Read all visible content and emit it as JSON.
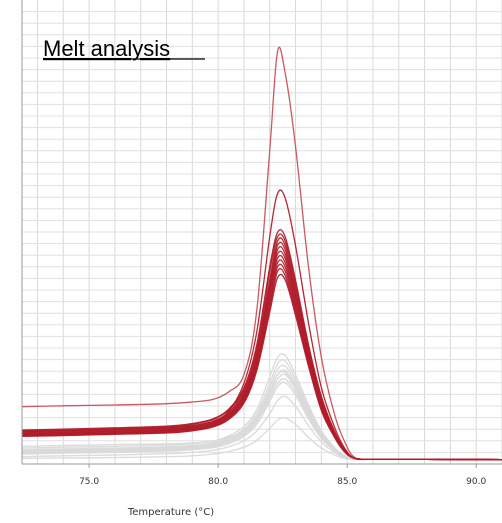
{
  "chart_data": {
    "type": "line",
    "title": "Melt analysis",
    "xlabel": "Temperature (°C)",
    "ylabel": "",
    "xlim": [
      72.4,
      91.0
    ],
    "ylim": [
      0,
      1.0
    ],
    "xticks": [
      "75.0",
      "80.0",
      "85.0",
      "90.0"
    ],
    "grid": true,
    "colors": {
      "sample": "#b01c2a",
      "sample_light": "#c8505a",
      "control": "#d8d8d8"
    },
    "x": [
      72.4,
      74,
      76,
      78,
      79,
      79.8,
      80.4,
      81.0,
      81.5,
      82.0,
      82.3,
      82.6,
      83.0,
      83.5,
      84.0,
      84.5,
      84.9,
      85.3,
      86,
      88,
      91.0
    ],
    "series": [
      {
        "group": "sample",
        "values": [
          0.126,
          0.128,
          0.13,
          0.133,
          0.137,
          0.143,
          0.16,
          0.2,
          0.35,
          0.72,
          0.95,
          0.9,
          0.73,
          0.45,
          0.24,
          0.11,
          0.045,
          0.008,
          0.004,
          0.004,
          0.003
        ]
      },
      {
        "group": "sample",
        "values": [
          0.068,
          0.07,
          0.073,
          0.077,
          0.082,
          0.092,
          0.115,
          0.18,
          0.3,
          0.52,
          0.62,
          0.61,
          0.5,
          0.32,
          0.17,
          0.08,
          0.03,
          0.006,
          0.004,
          0.004,
          0.003
        ]
      },
      {
        "group": "sample",
        "values": [
          0.072,
          0.074,
          0.077,
          0.081,
          0.087,
          0.098,
          0.12,
          0.17,
          0.27,
          0.45,
          0.53,
          0.52,
          0.42,
          0.27,
          0.15,
          0.07,
          0.027,
          0.006,
          0.004,
          0.004,
          0.003
        ]
      },
      {
        "group": "sample",
        "values": [
          0.07,
          0.072,
          0.075,
          0.079,
          0.085,
          0.096,
          0.118,
          0.165,
          0.26,
          0.44,
          0.52,
          0.51,
          0.41,
          0.265,
          0.145,
          0.068,
          0.026,
          0.006,
          0.004,
          0.004,
          0.003
        ]
      },
      {
        "group": "sample",
        "values": [
          0.068,
          0.07,
          0.073,
          0.077,
          0.082,
          0.092,
          0.113,
          0.16,
          0.25,
          0.42,
          0.51,
          0.5,
          0.4,
          0.26,
          0.14,
          0.066,
          0.025,
          0.006,
          0.004,
          0.004,
          0.003
        ]
      },
      {
        "group": "sample",
        "values": [
          0.066,
          0.068,
          0.071,
          0.075,
          0.08,
          0.09,
          0.11,
          0.155,
          0.245,
          0.41,
          0.5,
          0.49,
          0.39,
          0.255,
          0.138,
          0.065,
          0.025,
          0.006,
          0.004,
          0.004,
          0.003
        ]
      },
      {
        "group": "sample",
        "values": [
          0.064,
          0.066,
          0.069,
          0.073,
          0.078,
          0.088,
          0.108,
          0.152,
          0.24,
          0.4,
          0.49,
          0.48,
          0.385,
          0.25,
          0.135,
          0.064,
          0.024,
          0.006,
          0.004,
          0.004,
          0.003
        ]
      },
      {
        "group": "sample",
        "values": [
          0.063,
          0.065,
          0.068,
          0.072,
          0.077,
          0.087,
          0.106,
          0.15,
          0.235,
          0.395,
          0.48,
          0.47,
          0.378,
          0.245,
          0.132,
          0.062,
          0.024,
          0.006,
          0.004,
          0.004,
          0.003
        ]
      },
      {
        "group": "sample",
        "values": [
          0.061,
          0.063,
          0.066,
          0.07,
          0.075,
          0.085,
          0.104,
          0.146,
          0.23,
          0.385,
          0.47,
          0.46,
          0.37,
          0.24,
          0.129,
          0.061,
          0.023,
          0.006,
          0.004,
          0.004,
          0.003
        ]
      },
      {
        "group": "sample",
        "values": [
          0.06,
          0.062,
          0.065,
          0.069,
          0.074,
          0.083,
          0.102,
          0.143,
          0.225,
          0.375,
          0.46,
          0.45,
          0.362,
          0.235,
          0.126,
          0.06,
          0.023,
          0.006,
          0.004,
          0.004,
          0.003
        ]
      },
      {
        "group": "sample",
        "values": [
          0.059,
          0.061,
          0.064,
          0.068,
          0.073,
          0.082,
          0.1,
          0.14,
          0.22,
          0.365,
          0.45,
          0.44,
          0.354,
          0.23,
          0.123,
          0.058,
          0.022,
          0.006,
          0.004,
          0.004,
          0.003
        ]
      },
      {
        "group": "sample",
        "values": [
          0.058,
          0.06,
          0.063,
          0.066,
          0.071,
          0.08,
          0.098,
          0.137,
          0.215,
          0.355,
          0.44,
          0.43,
          0.346,
          0.225,
          0.12,
          0.057,
          0.022,
          0.006,
          0.004,
          0.004,
          0.003
        ]
      },
      {
        "group": "sample",
        "values": [
          0.057,
          0.059,
          0.062,
          0.065,
          0.07,
          0.079,
          0.096,
          0.134,
          0.21,
          0.345,
          0.425,
          0.42,
          0.338,
          0.22,
          0.117,
          0.056,
          0.021,
          0.006,
          0.004,
          0.004,
          0.003
        ]
      },
      {
        "group": "control",
        "values": [
          0.03,
          0.032,
          0.034,
          0.037,
          0.04,
          0.046,
          0.058,
          0.08,
          0.12,
          0.195,
          0.24,
          0.245,
          0.2,
          0.13,
          0.07,
          0.032,
          0.012,
          0.005,
          0.004,
          0.004,
          0.003
        ]
      },
      {
        "group": "control",
        "values": [
          0.026,
          0.028,
          0.03,
          0.033,
          0.036,
          0.042,
          0.053,
          0.074,
          0.112,
          0.18,
          0.225,
          0.232,
          0.19,
          0.124,
          0.066,
          0.03,
          0.011,
          0.005,
          0.004,
          0.004,
          0.003
        ]
      },
      {
        "group": "control",
        "values": [
          0.024,
          0.026,
          0.028,
          0.031,
          0.034,
          0.039,
          0.05,
          0.07,
          0.105,
          0.17,
          0.212,
          0.22,
          0.182,
          0.118,
          0.063,
          0.029,
          0.011,
          0.005,
          0.004,
          0.004,
          0.003
        ]
      },
      {
        "group": "control",
        "values": [
          0.022,
          0.024,
          0.026,
          0.029,
          0.032,
          0.037,
          0.047,
          0.066,
          0.1,
          0.16,
          0.2,
          0.21,
          0.175,
          0.113,
          0.06,
          0.028,
          0.01,
          0.005,
          0.004,
          0.004,
          0.003
        ]
      },
      {
        "group": "control",
        "values": [
          0.02,
          0.022,
          0.024,
          0.027,
          0.03,
          0.035,
          0.045,
          0.063,
          0.095,
          0.152,
          0.19,
          0.2,
          0.168,
          0.108,
          0.057,
          0.026,
          0.01,
          0.005,
          0.004,
          0.004,
          0.003
        ]
      },
      {
        "group": "control",
        "values": [
          0.018,
          0.02,
          0.022,
          0.025,
          0.028,
          0.033,
          0.042,
          0.06,
          0.09,
          0.145,
          0.18,
          0.19,
          0.16,
          0.103,
          0.054,
          0.025,
          0.009,
          0.005,
          0.004,
          0.004,
          0.003
        ]
      },
      {
        "group": "control",
        "values": [
          0.016,
          0.018,
          0.02,
          0.023,
          0.026,
          0.031,
          0.04,
          0.057,
          0.085,
          0.138,
          0.172,
          0.182,
          0.153,
          0.098,
          0.052,
          0.024,
          0.009,
          0.005,
          0.004,
          0.004,
          0.003
        ]
      },
      {
        "group": "control",
        "values": [
          0.034,
          0.036,
          0.038,
          0.04,
          0.042,
          0.046,
          0.055,
          0.07,
          0.1,
          0.16,
          0.2,
          0.205,
          0.17,
          0.11,
          0.06,
          0.028,
          0.011,
          0.005,
          0.004,
          0.004,
          0.003
        ]
      },
      {
        "group": "control",
        "values": [
          0.01,
          0.012,
          0.014,
          0.017,
          0.02,
          0.025,
          0.033,
          0.047,
          0.07,
          0.11,
          0.14,
          0.15,
          0.127,
          0.082,
          0.044,
          0.02,
          0.008,
          0.005,
          0.004,
          0.004,
          0.003
        ]
      },
      {
        "group": "control",
        "values": [
          0.006,
          0.007,
          0.008,
          0.01,
          0.012,
          0.016,
          0.022,
          0.032,
          0.048,
          0.076,
          0.095,
          0.1,
          0.085,
          0.055,
          0.03,
          0.014,
          0.006,
          0.004,
          0.004,
          0.004,
          0.003
        ]
      }
    ]
  }
}
